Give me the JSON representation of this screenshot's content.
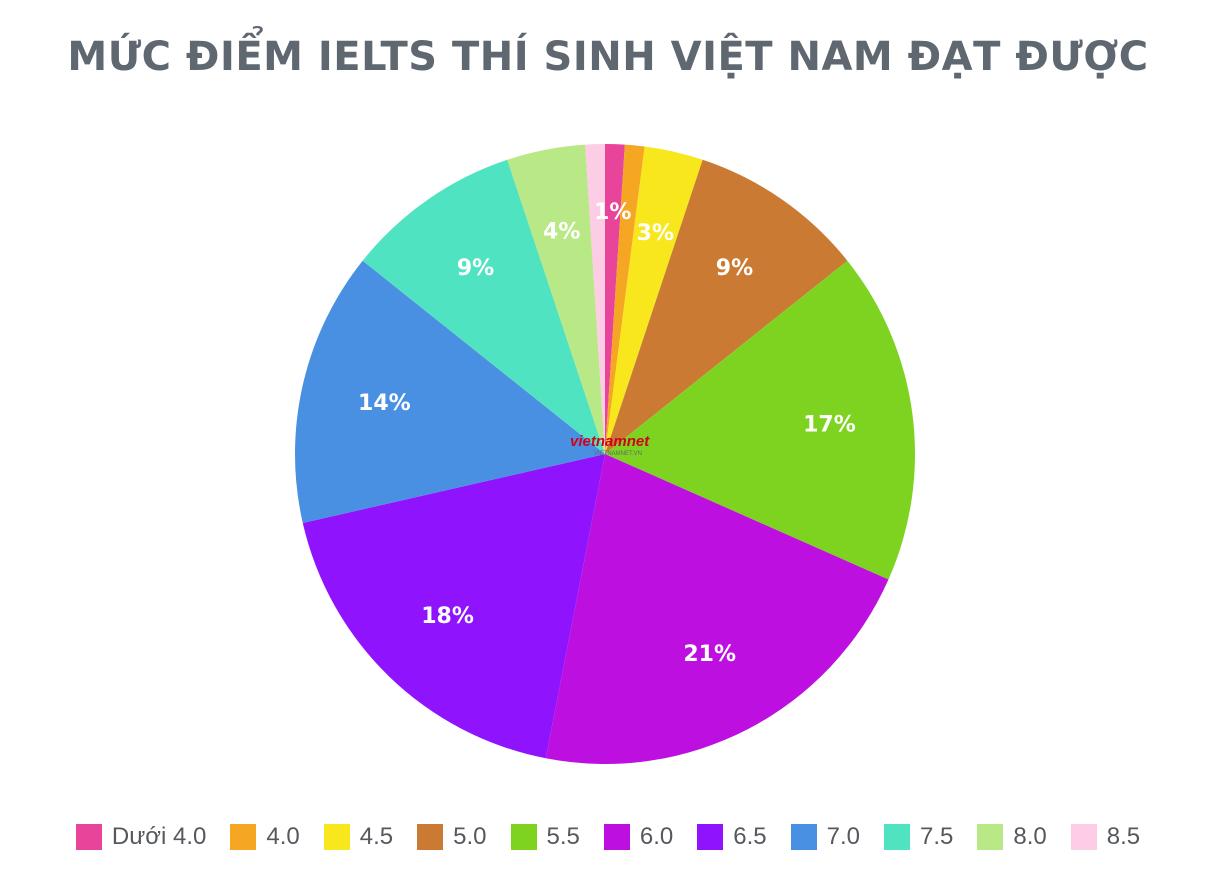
{
  "chart_data": {
    "type": "pie",
    "title": "MỨC ĐIỂM IELTS THÍ SINH VIỆT NAM ĐẠT ĐƯỢC",
    "categories": [
      "Dưới 4.0",
      "4.0",
      "4.5",
      "5.0",
      "5.5",
      "6.0",
      "6.5",
      "7.0",
      "7.5",
      "8.0",
      "8.5"
    ],
    "values": [
      1,
      1,
      3,
      9,
      17,
      21,
      18,
      14,
      9,
      4,
      1
    ],
    "data_labels": [
      "1%",
      "",
      "3%",
      "9%",
      "17%",
      "21%",
      "18%",
      "14%",
      "9%",
      "4%",
      ""
    ],
    "colors": [
      "#e8449a",
      "#f5a623",
      "#f8e71c",
      "#cb7a34",
      "#7ed321",
      "#bd10e0",
      "#9013fe",
      "#4a90e2",
      "#50e3c2",
      "#b8e986",
      "#fccde5"
    ],
    "legend_position": "bottom"
  },
  "watermark": {
    "text": "vietnamnet",
    "subtext": "VIETNAMNET.VN"
  }
}
